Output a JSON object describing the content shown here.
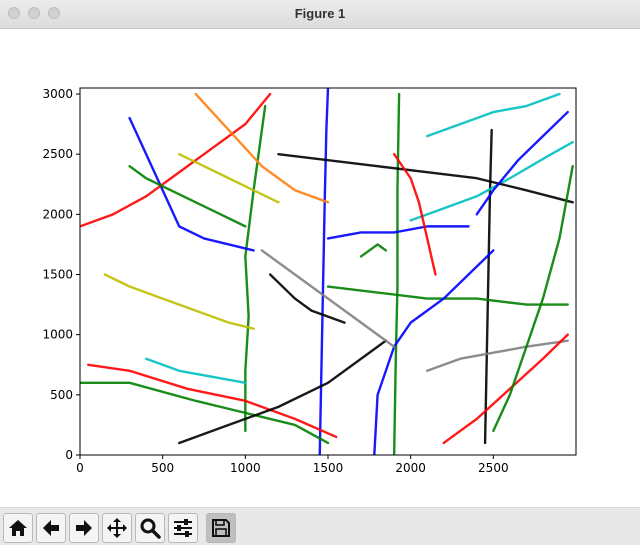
{
  "window": {
    "title": "Figure 1"
  },
  "toolbar": {
    "buttons": [
      {
        "name": "home-button",
        "icon": "home-icon"
      },
      {
        "name": "back-button",
        "icon": "arrow-left-icon"
      },
      {
        "name": "forward-button",
        "icon": "arrow-right-icon"
      },
      {
        "name": "pan-button",
        "icon": "move-icon"
      },
      {
        "name": "zoom-button",
        "icon": "magnifier-icon"
      },
      {
        "name": "configure-subplots-button",
        "icon": "sliders-icon"
      },
      {
        "name": "save-button",
        "icon": "floppy-disk-icon"
      }
    ]
  },
  "chart_data": {
    "type": "line",
    "title": "",
    "xlabel": "",
    "ylabel": "",
    "xlim": [
      0,
      3000
    ],
    "ylim": [
      0,
      3050
    ],
    "xticks": [
      0,
      500,
      1000,
      1500,
      2000,
      2500
    ],
    "yticks": [
      0,
      500,
      1000,
      1500,
      2000,
      2500,
      3000
    ],
    "grid": false,
    "legend": "none",
    "series_colors": [
      "#0000ff",
      "#008000",
      "#ff0000",
      "#00bfbf",
      "#bfbf00",
      "#000000",
      "#ff7f0e",
      "#808080"
    ],
    "series": [
      {
        "color": "#0000ff",
        "x": [
          1450,
          1460,
          1470,
          1480,
          1490,
          1500
        ],
        "y": [
          0,
          700,
          1400,
          2100,
          2700,
          3050
        ]
      },
      {
        "color": "#008000",
        "x": [
          1900,
          1910,
          1920,
          1920,
          1930
        ],
        "y": [
          0,
          800,
          1400,
          2200,
          3000
        ]
      },
      {
        "color": "#000000",
        "x": [
          2450,
          2460,
          2470,
          2480,
          2490
        ],
        "y": [
          100,
          800,
          1500,
          2200,
          2700
        ]
      },
      {
        "color": "#008000",
        "x": [
          1000,
          1000,
          1020,
          1000,
          1050,
          1120
        ],
        "y": [
          200,
          700,
          1150,
          1650,
          2200,
          2900
        ]
      },
      {
        "color": "#0000ff",
        "x": [
          300,
          400,
          500,
          600,
          750,
          900,
          1050
        ],
        "y": [
          2800,
          2500,
          2200,
          1900,
          1800,
          1750,
          1700
        ]
      },
      {
        "color": "#ff0000",
        "x": [
          0,
          200,
          400,
          600,
          800,
          1000,
          1150
        ],
        "y": [
          1900,
          2000,
          2150,
          2350,
          2550,
          2750,
          3000
        ]
      },
      {
        "color": "#008000",
        "x": [
          0,
          300,
          700,
          1000,
          1300,
          1500
        ],
        "y": [
          600,
          600,
          450,
          350,
          250,
          100
        ]
      },
      {
        "color": "#ff0000",
        "x": [
          50,
          300,
          650,
          1000,
          1300,
          1550
        ],
        "y": [
          750,
          700,
          550,
          450,
          300,
          150
        ]
      },
      {
        "color": "#000000",
        "x": [
          600,
          900,
          1200,
          1500,
          1700,
          1850
        ],
        "y": [
          100,
          250,
          400,
          600,
          800,
          950
        ]
      },
      {
        "color": "#008000",
        "x": [
          1500,
          1800,
          2100,
          2400,
          2700,
          2950
        ],
        "y": [
          1400,
          1350,
          1300,
          1300,
          1250,
          1250
        ]
      },
      {
        "color": "#0000ff",
        "x": [
          1500,
          1700,
          1900,
          2100,
          2350
        ],
        "y": [
          1800,
          1850,
          1850,
          1900,
          1900
        ]
      },
      {
        "color": "#00bfbf",
        "x": [
          2000,
          2200,
          2400,
          2600,
          2850,
          2980
        ],
        "y": [
          1950,
          2050,
          2150,
          2300,
          2500,
          2600
        ]
      },
      {
        "color": "#000000",
        "x": [
          1200,
          1500,
          1800,
          2100,
          2400,
          2700,
          2980
        ],
        "y": [
          2500,
          2450,
          2400,
          2350,
          2300,
          2200,
          2100
        ]
      },
      {
        "color": "#ff7f0e",
        "x": [
          700,
          900,
          1100,
          1300,
          1500
        ],
        "y": [
          3000,
          2700,
          2400,
          2200,
          2100
        ]
      },
      {
        "color": "#bfbf00",
        "x": [
          150,
          300,
          500,
          700,
          900,
          1050
        ],
        "y": [
          1500,
          1400,
          1300,
          1200,
          1100,
          1050
        ]
      },
      {
        "color": "#0000ff",
        "x": [
          1780,
          1800,
          1900,
          2000,
          2100,
          2200,
          2350,
          2500
        ],
        "y": [
          0,
          500,
          900,
          1100,
          1200,
          1300,
          1500,
          1700
        ]
      },
      {
        "color": "#808080",
        "x": [
          2100,
          2300,
          2500,
          2700,
          2950
        ],
        "y": [
          700,
          800,
          850,
          900,
          950
        ]
      },
      {
        "color": "#ff0000",
        "x": [
          2200,
          2400,
          2600,
          2800,
          2950
        ],
        "y": [
          100,
          300,
          550,
          800,
          1000
        ]
      },
      {
        "color": "#008000",
        "x": [
          2500,
          2600,
          2700,
          2800,
          2900,
          2980
        ],
        "y": [
          200,
          500,
          900,
          1300,
          1800,
          2400
        ]
      },
      {
        "color": "#00bfbf",
        "x": [
          2100,
          2300,
          2500,
          2700,
          2900
        ],
        "y": [
          2650,
          2750,
          2850,
          2900,
          3000
        ]
      },
      {
        "color": "#0000ff",
        "x": [
          2400,
          2500,
          2650,
          2800,
          2950
        ],
        "y": [
          2000,
          2200,
          2450,
          2650,
          2850
        ]
      },
      {
        "color": "#000000",
        "x": [
          1150,
          1300,
          1400,
          1500,
          1600
        ],
        "y": [
          1500,
          1300,
          1200,
          1150,
          1100
        ]
      },
      {
        "color": "#008000",
        "x": [
          300,
          400,
          550,
          700,
          850,
          1000
        ],
        "y": [
          2400,
          2300,
          2200,
          2100,
          2000,
          1900
        ]
      },
      {
        "color": "#bfbf00",
        "x": [
          600,
          750,
          900,
          1050,
          1200
        ],
        "y": [
          2500,
          2400,
          2300,
          2200,
          2100
        ]
      },
      {
        "color": "#ff0000",
        "x": [
          1900,
          2000,
          2050,
          2100,
          2150
        ],
        "y": [
          2500,
          2300,
          2100,
          1800,
          1500
        ]
      },
      {
        "color": "#008000",
        "x": [
          1700,
          1750,
          1800,
          1850
        ],
        "y": [
          1650,
          1700,
          1750,
          1700
        ]
      },
      {
        "color": "#00bfbf",
        "x": [
          400,
          600,
          800,
          1000
        ],
        "y": [
          800,
          700,
          650,
          600
        ]
      },
      {
        "color": "#808080",
        "x": [
          1100,
          1300,
          1500,
          1700,
          1900
        ],
        "y": [
          1700,
          1500,
          1300,
          1100,
          900
        ]
      }
    ]
  }
}
